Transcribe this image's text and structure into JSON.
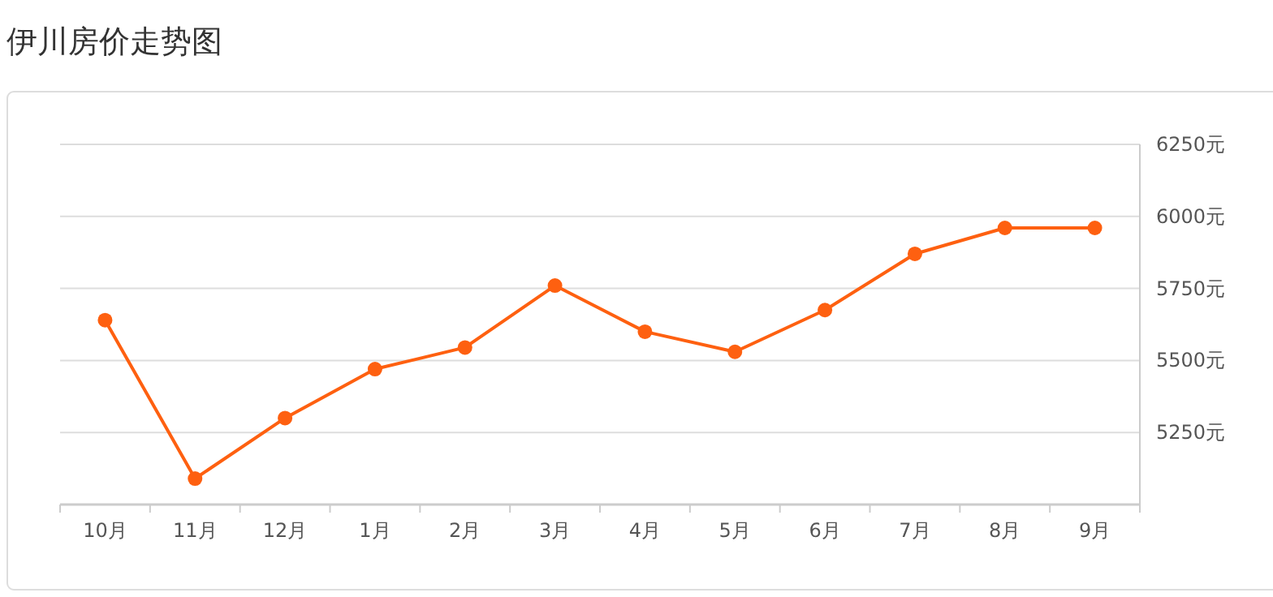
{
  "chart_data": {
    "type": "line",
    "title": "伊川房价走势图",
    "categories": [
      "10月",
      "11月",
      "12月",
      "1月",
      "2月",
      "3月",
      "4月",
      "5月",
      "6月",
      "7月",
      "8月",
      "9月"
    ],
    "series": [
      {
        "color": "#fe6010",
        "values": [
          5640,
          5090,
          5300,
          5470,
          5545,
          5760,
          5600,
          5530,
          5675,
          5870,
          5960,
          5960
        ]
      }
    ],
    "ylim": [
      5000,
      6250
    ],
    "yticks": [
      {
        "value": 5250,
        "label": "5250元"
      },
      {
        "value": 5500,
        "label": "5500元"
      },
      {
        "value": 5750,
        "label": "5750元"
      },
      {
        "value": 6000,
        "label": "6000元"
      },
      {
        "value": 6250,
        "label": "6250元"
      }
    ],
    "grid": "y",
    "marker": "circle",
    "line_style": "solid"
  }
}
